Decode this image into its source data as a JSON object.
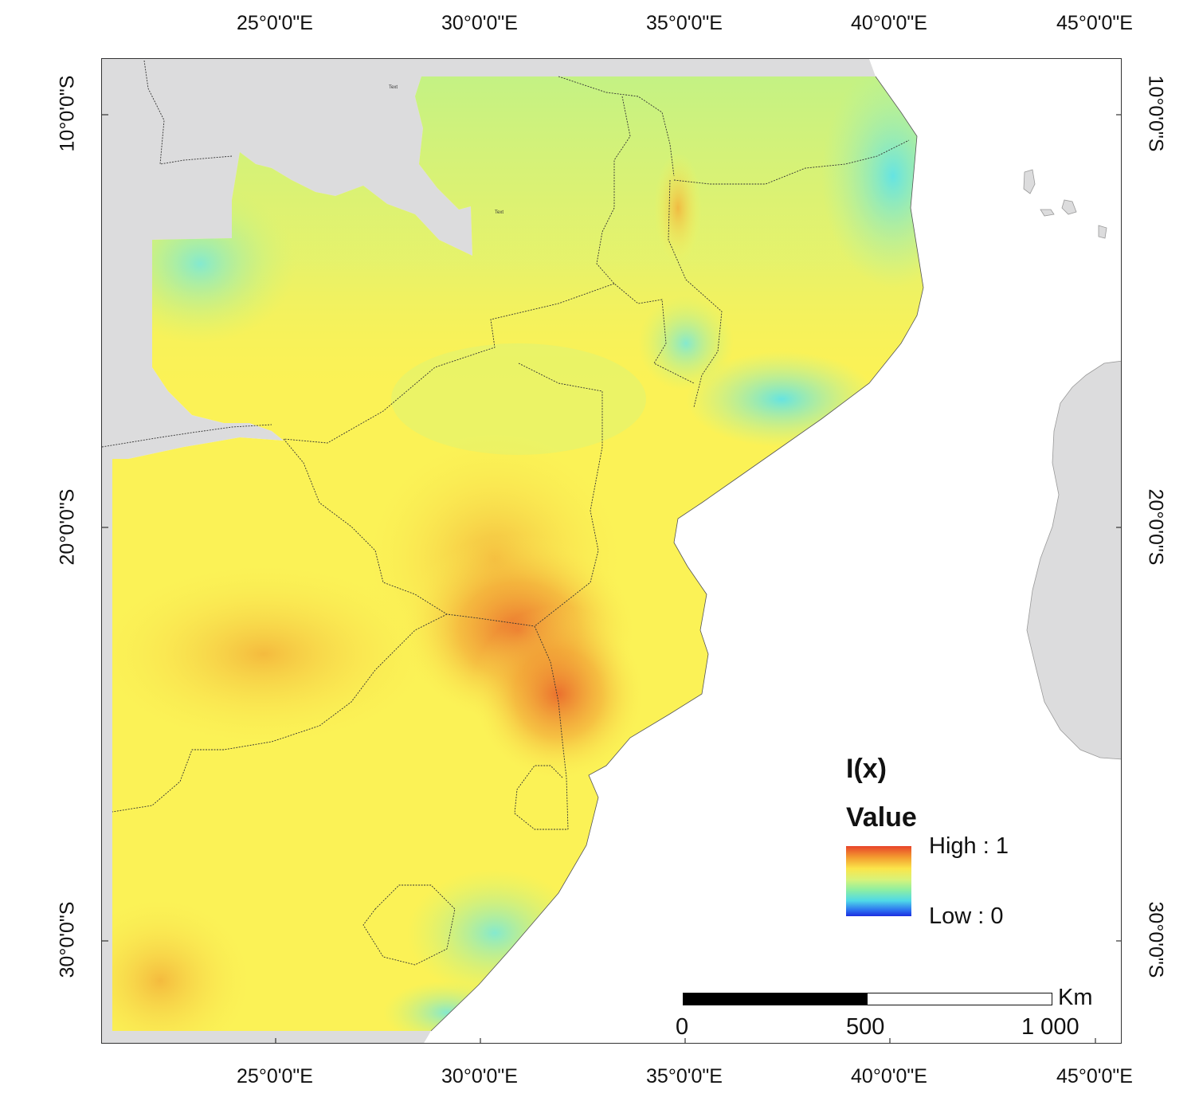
{
  "map": {
    "lon_labels": [
      "25°0'0\"E",
      "30°0'0\"E",
      "35°0'0\"E",
      "40°0'0\"E",
      "45°0'0\"E"
    ],
    "lat_labels": [
      "10°0'0\"S",
      "20°0'0\"S",
      "30°0'0\"S"
    ],
    "inset_texts": [
      "Text",
      "Text"
    ],
    "colors": {
      "land_nodata": "#dcdcdd",
      "ocean": "#ffffff",
      "ramp_high": "#e8442a",
      "ramp_mid": "#fbf256",
      "ramp_low": "#1c2ee0",
      "borders": "#333333"
    }
  },
  "legend": {
    "title": "I(x)",
    "subtitle": "Value",
    "high_label": "High : 1",
    "low_label": "Low : 0"
  },
  "scale_bar": {
    "unit": "Km",
    "labels": [
      "0",
      "500",
      "1 000"
    ]
  }
}
